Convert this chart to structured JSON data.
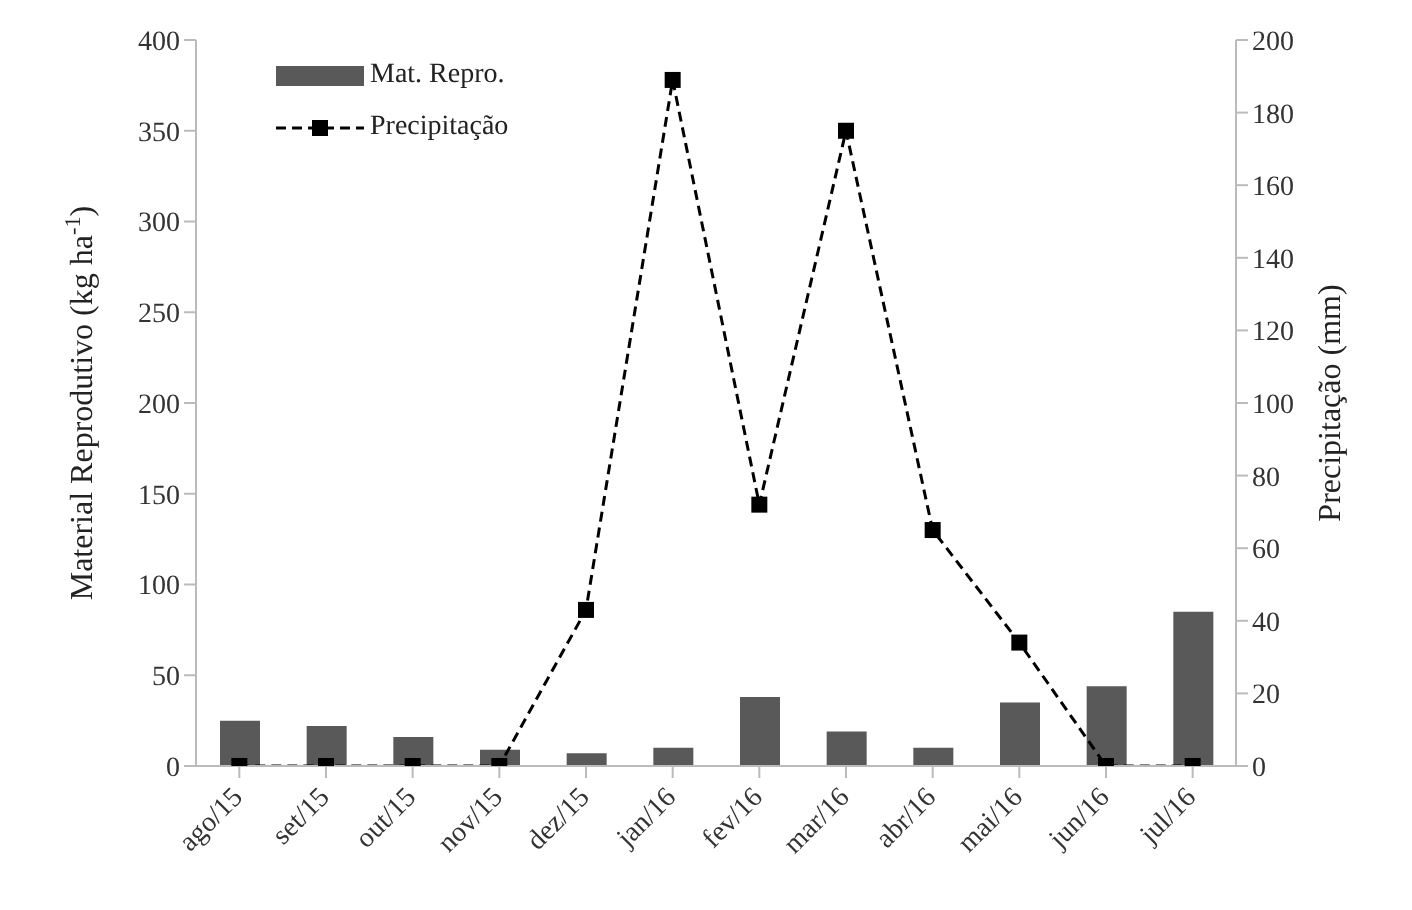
{
  "chart_data": {
    "type": "bar",
    "categories": [
      "ago/15",
      "set/15",
      "out/15",
      "nov/15",
      "dez/15",
      "jan/16",
      "fev/16",
      "mar/16",
      "abr/16",
      "mai/16",
      "jun/16",
      "jul/16"
    ],
    "series": [
      {
        "name": "Mat. Repro.",
        "color": "#595959",
        "values": [
          25,
          22,
          16,
          9,
          7,
          10,
          38,
          19,
          10,
          35,
          44,
          85
        ]
      },
      {
        "name": "Precipitação",
        "type": "line",
        "axis": "y2",
        "color": "#000000",
        "marker": "square",
        "line_style": "dashed",
        "values": [
          0,
          0,
          0,
          0,
          43,
          189,
          72,
          175,
          65,
          34,
          0,
          0
        ]
      }
    ],
    "ylabel": "Material Reprodutivo (kg ha$^{-1}$)",
    "y2label": "Precipitação (mm)",
    "ylim": [
      0,
      400
    ],
    "yticks": [
      0,
      50,
      100,
      150,
      200,
      250,
      300,
      350,
      400
    ],
    "y2lim": [
      0,
      200
    ],
    "y2ticks": [
      0,
      20,
      40,
      60,
      80,
      100,
      120,
      140,
      160,
      180,
      200
    ],
    "grid": false,
    "legend": "top left"
  }
}
